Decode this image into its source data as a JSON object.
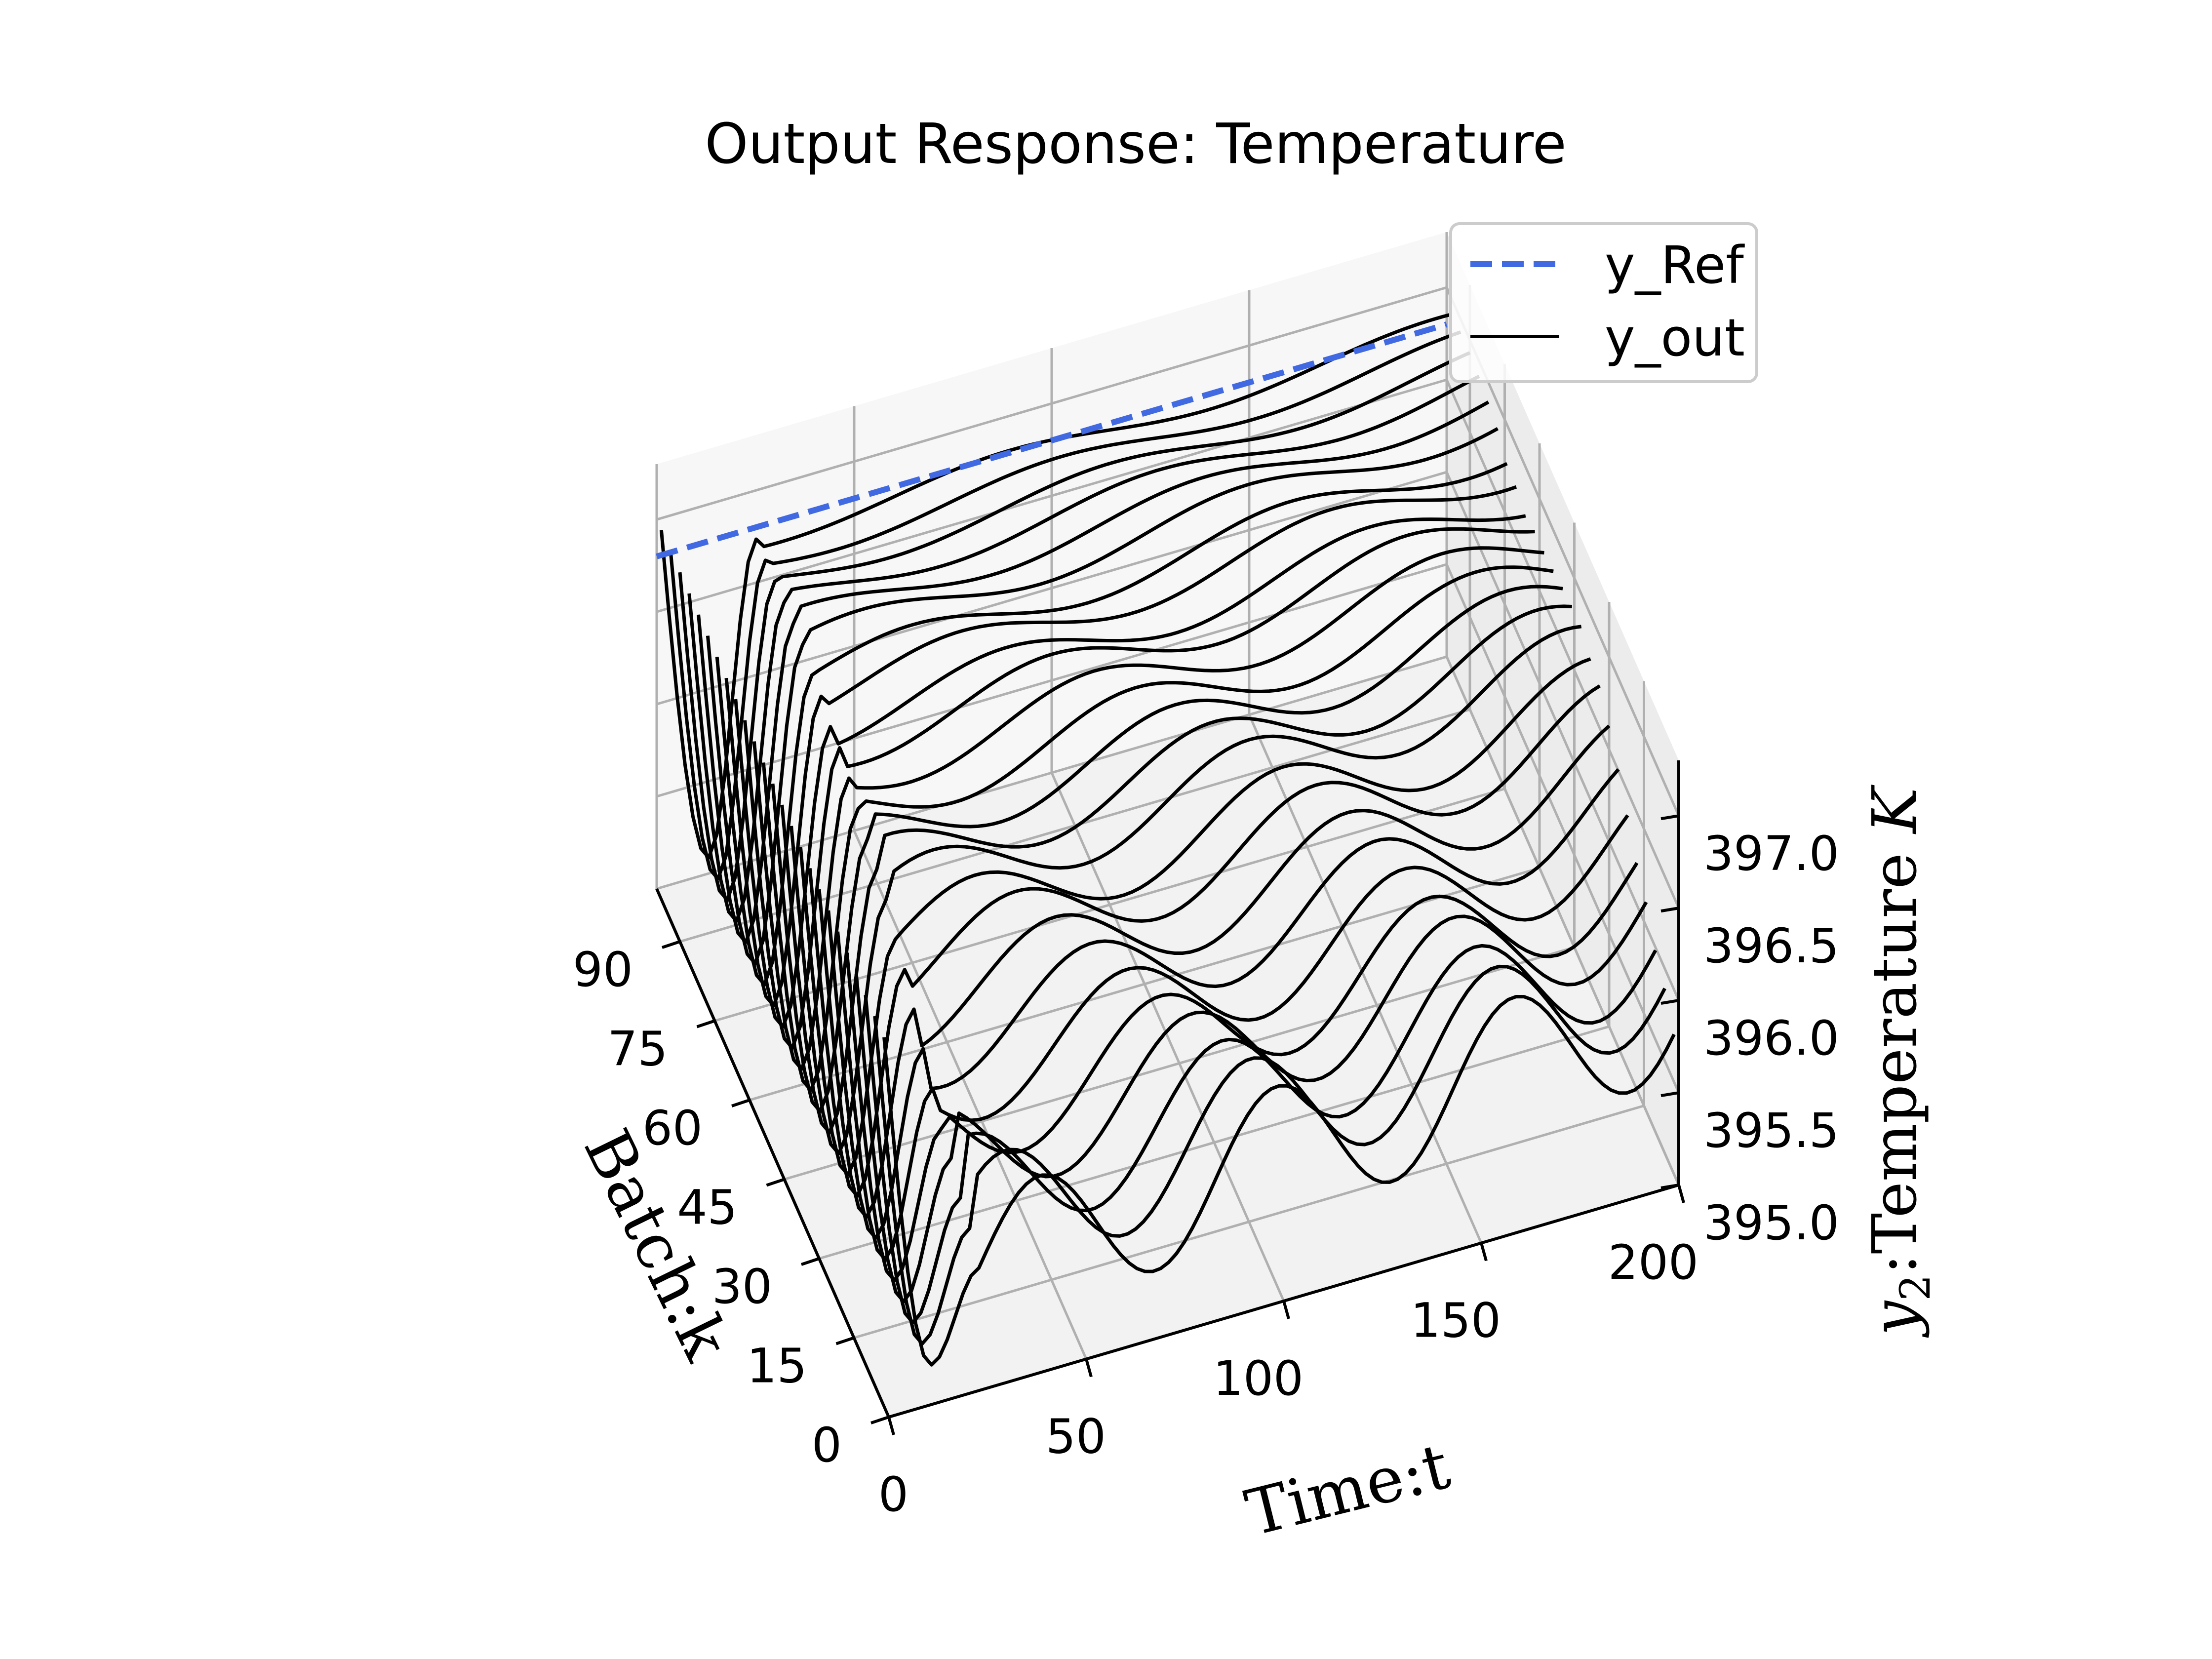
{
  "chart_data": {
    "type": "line",
    "projection": "3d",
    "title": "Output Response: Temperature",
    "xlabel": "Time:t",
    "ylabel": "Batch:k",
    "zlabel": "y₂:Temperature K",
    "zlabel_symbol": "y",
    "zlabel_subscript": "2",
    "zlabel_rest": ":Temperature ",
    "zlabel_unit": "K",
    "xlim": [
      0,
      200
    ],
    "ylim": [
      0,
      100
    ],
    "zlim": [
      395.0,
      397.3
    ],
    "x_ticks": [
      "0",
      "50",
      "100",
      "150",
      "200"
    ],
    "y_ticks": [
      "0",
      "15",
      "30",
      "45",
      "60",
      "75",
      "90"
    ],
    "z_ticks": [
      "395.0",
      "395.5",
      "396.0",
      "396.5",
      "397.0"
    ],
    "grid": true,
    "legend_position": "top-right",
    "series": [
      {
        "name": "y_Ref",
        "style": "dashed",
        "color": "#4169e1",
        "x": [
          0,
          50,
          100,
          150,
          200
        ],
        "batch": 100,
        "values": [
          396.8,
          396.8,
          396.8,
          396.8,
          396.8
        ]
      },
      {
        "name": "y_out",
        "style": "solid",
        "color": "#000000",
        "batches": [
          2,
          6,
          10,
          14,
          18,
          22,
          26,
          30,
          34,
          38,
          42,
          46,
          50,
          54,
          58,
          62,
          66,
          70,
          74,
          78,
          82,
          86,
          90,
          94,
          98
        ],
        "initial_value": 397.0,
        "dip_min": 395.15,
        "settled_values": [
          395.6,
          395.7,
          395.75,
          395.85,
          395.9,
          396.0,
          396.1,
          396.2,
          396.3,
          396.35,
          396.45,
          396.5,
          396.55,
          396.6,
          396.65,
          396.7,
          396.7,
          396.75,
          396.75,
          396.8,
          396.8,
          396.8,
          396.8,
          396.8,
          396.8
        ]
      }
    ]
  }
}
